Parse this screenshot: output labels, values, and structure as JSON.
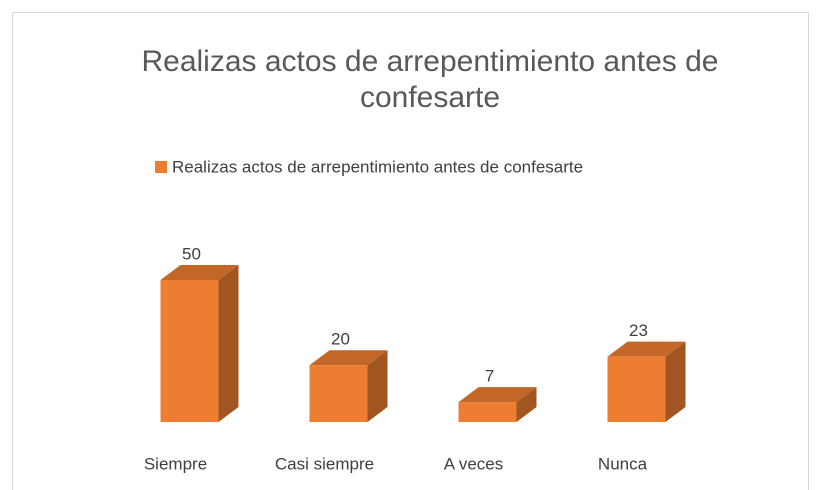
{
  "chart_data": {
    "type": "bar3d",
    "title": "Realizas actos de arrepentimiento antes de confesarte",
    "categories": [
      "Siempre",
      "Casi siempre",
      "A veces",
      "Nunca"
    ],
    "series": [
      {
        "name": "Realizas actos de arrepentimiento antes de confesarte",
        "color": "#ed7d31",
        "values": [
          50,
          20,
          7,
          23
        ]
      }
    ],
    "legend": "top"
  }
}
